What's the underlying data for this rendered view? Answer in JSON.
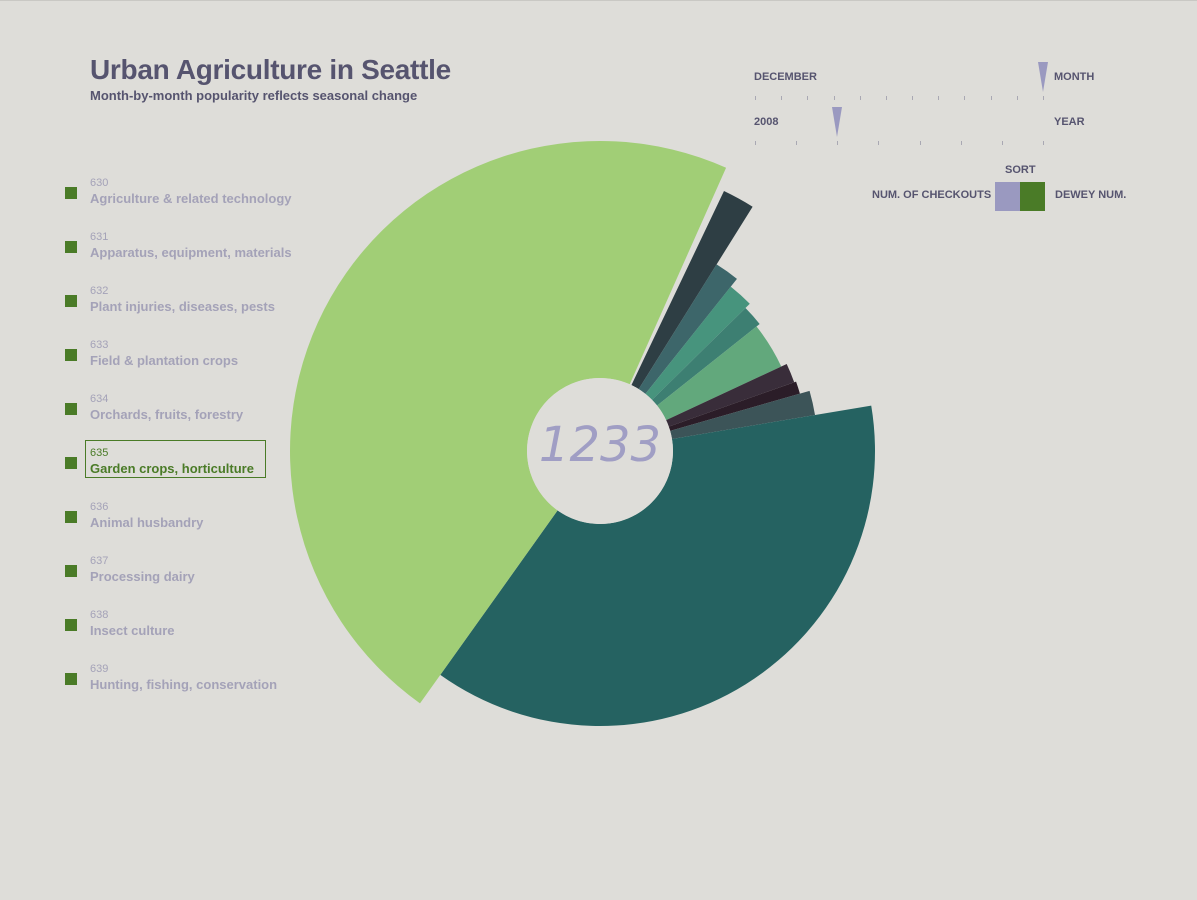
{
  "header": {
    "title": "Urban Agriculture in Seattle",
    "subtitle": "Month-by-month popularity reflects seasonal change"
  },
  "legend": [
    {
      "code": "630",
      "label": "Agriculture & related technology"
    },
    {
      "code": "631",
      "label": "Apparatus, equipment, materials"
    },
    {
      "code": "632",
      "label": "Plant injuries, diseases, pests"
    },
    {
      "code": "633",
      "label": "Field & plantation crops"
    },
    {
      "code": "634",
      "label": "Orchards, fruits, forestry"
    },
    {
      "code": "635",
      "label": "Garden crops, horticulture",
      "selected": true
    },
    {
      "code": "636",
      "label": "Animal husbandry"
    },
    {
      "code": "637",
      "label": "Processing dairy"
    },
    {
      "code": "638",
      "label": "Insect culture"
    },
    {
      "code": "639",
      "label": "Hunting, fishing, conservation"
    }
  ],
  "controls": {
    "month": {
      "value": "DECEMBER",
      "label": "MONTH",
      "position": 12,
      "steps": 12
    },
    "year": {
      "value": "2008",
      "label": "YEAR",
      "position": 3,
      "steps": 8
    },
    "sort": {
      "title": "SORT",
      "left_label": "NUM. OF CHECKOUTS",
      "right_label": "DEWEY NUM.",
      "active": "DEWEY NUM."
    }
  },
  "colors": {
    "sort_checkouts": "#9a99c0",
    "sort_dewey": "#4a7b27",
    "swatch": "#4a7b27"
  },
  "chart_data": {
    "type": "pie",
    "variant": "radial-rose",
    "center_value": "1233",
    "slices": [
      {
        "start_deg": 25.5,
        "end_deg": 32.0,
        "radius": 288,
        "color": "#2e3e44"
      },
      {
        "start_deg": 32.0,
        "end_deg": 38.5,
        "radius": 220,
        "color": "#3d666a"
      },
      {
        "start_deg": 38.5,
        "end_deg": 45.5,
        "radius": 210,
        "color": "#47947d"
      },
      {
        "start_deg": 45.5,
        "end_deg": 51.5,
        "radius": 204,
        "color": "#3d7f72"
      },
      {
        "start_deg": 51.5,
        "end_deg": 65.0,
        "radius": 200,
        "color": "#62a87c"
      },
      {
        "start_deg": 65.0,
        "end_deg": 70.5,
        "radius": 206,
        "color": "#392d3a"
      },
      {
        "start_deg": 70.5,
        "end_deg": 74.0,
        "radius": 208,
        "color": "#2b1d28"
      },
      {
        "start_deg": 74.0,
        "end_deg": 80.5,
        "radius": 218,
        "color": "#3c5458"
      },
      {
        "start_deg": 80.5,
        "end_deg": 215.5,
        "radius": 275,
        "color": "#256261"
      },
      {
        "start_deg": 215.5,
        "end_deg": 384.0,
        "radius": 310,
        "color": "#a1ce76"
      }
    ]
  }
}
